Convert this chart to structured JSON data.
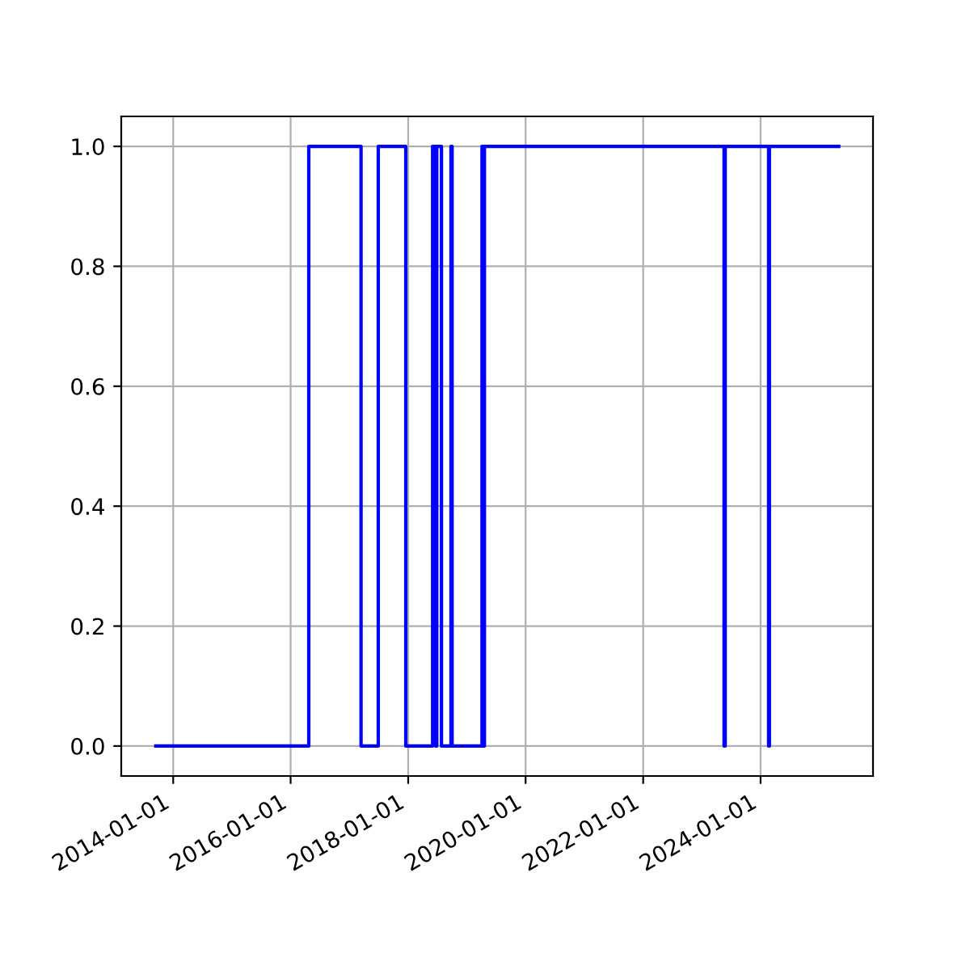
{
  "chart_data": {
    "type": "step",
    "x": [
      "2013-09-15",
      "2016-04-23",
      "2017-03-14",
      "2017-06-29",
      "2017-12-17",
      "2018-06-02",
      "2018-06-20",
      "2018-06-28",
      "2018-07-27",
      "2018-09-24",
      "2018-10-01",
      "2019-04-05",
      "2019-04-12",
      "2019-04-20",
      "2023-05-19",
      "2023-05-26",
      "2024-02-20",
      "2024-02-25",
      "2025-05-01"
    ],
    "series": [
      {
        "color": "#0000ff",
        "values": [
          0,
          1,
          0,
          1,
          0,
          1,
          0,
          1,
          0,
          1,
          0,
          1,
          0,
          1,
          0,
          1,
          0,
          1,
          1
        ]
      }
    ],
    "xlim": [
      "2013-02-12",
      "2025-11-30"
    ],
    "xticks": [
      {
        "value": "2014-01-01",
        "label": "2014-01-01"
      },
      {
        "value": "2016-01-01",
        "label": "2016-01-01"
      },
      {
        "value": "2018-01-01",
        "label": "2018-01-01"
      },
      {
        "value": "2020-01-01",
        "label": "2020-01-01"
      },
      {
        "value": "2022-01-01",
        "label": "2022-01-01"
      },
      {
        "value": "2024-01-01",
        "label": "2024-01-01"
      }
    ],
    "ylim": [
      -0.05,
      1.05
    ],
    "yticks": [
      {
        "value": 0,
        "label": "0.0"
      },
      {
        "value": 0.2,
        "label": "0.2"
      },
      {
        "value": 0.4,
        "label": "0.4"
      },
      {
        "value": 0.6,
        "label": "0.6"
      },
      {
        "value": 0.8,
        "label": "0.8"
      },
      {
        "value": 1,
        "label": "1.0"
      }
    ],
    "grid": true,
    "legend": false
  }
}
